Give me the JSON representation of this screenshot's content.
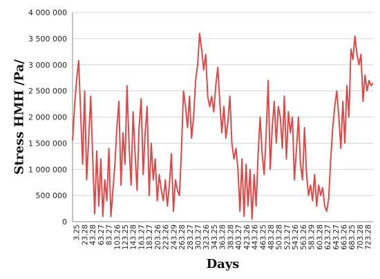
{
  "chart_data": {
    "type": "line",
    "title": "",
    "xlabel": "Days",
    "ylabel": "Stress HMH /Pa/",
    "ylim": [
      0,
      4000000
    ],
    "yticks": [
      0,
      500000,
      1000000,
      1500000,
      2000000,
      2500000,
      3000000,
      3500000,
      4000000
    ],
    "ytick_labels": [
      "0",
      "500 000",
      "1 000 000",
      "1 500 000",
      "2 000 000",
      "2 500 000",
      "3 000 000",
      "3 500 000",
      "4 000 000"
    ],
    "xtick_labels": [
      "3.25",
      "23.28",
      "43.28",
      "63.27",
      "83.27",
      "103.26",
      "123.25",
      "143.28",
      "163.27",
      "183.27",
      "203.26",
      "223.26",
      "243.29",
      "263.28",
      "283.27",
      "303.27",
      "323.26",
      "343.25",
      "363.28",
      "383.28",
      "403.27",
      "423.26",
      "443.26",
      "463.25",
      "483.28",
      "503.28",
      "523.27",
      "543.26",
      "563.26",
      "583.29",
      "603.28",
      "623.27",
      "643.27",
      "663.26",
      "683.25",
      "703.28",
      "723.28"
    ],
    "grid": true,
    "line_color": "#e04848",
    "series": [
      {
        "name": "",
        "values": [
          1550000,
          2200000,
          2700000,
          3080000,
          2100000,
          1100000,
          2500000,
          800000,
          1600000,
          2400000,
          1200000,
          150000,
          1350000,
          300000,
          1200000,
          100000,
          800000,
          400000,
          1400000,
          100000,
          600000,
          1100000,
          1800000,
          2300000,
          700000,
          1700000,
          1100000,
          2600000,
          1500000,
          700000,
          2100000,
          1300000,
          600000,
          1800000,
          2350000,
          900000,
          1700000,
          2200000,
          500000,
          1500000,
          800000,
          1200000,
          400000,
          900000,
          600000,
          400000,
          800000,
          300000,
          700000,
          1300000,
          200000,
          800000,
          600000,
          500000,
          1400000,
          2500000,
          2200000,
          1800000,
          2400000,
          1600000,
          2000000,
          2700000,
          3000000,
          3600000,
          3300000,
          2900000,
          3200000,
          2400000,
          2200000,
          2400000,
          2100000,
          2600000,
          2950000,
          2300000,
          1700000,
          2200000,
          1600000,
          1900000,
          2400000,
          1500000,
          1200000,
          1400000,
          1000000,
          200000,
          1200000,
          100000,
          1100000,
          300000,
          1000000,
          50000,
          900000,
          300000,
          1300000,
          2000000,
          1300000,
          900000,
          1700000,
          2700000,
          1000000,
          1800000,
          2300000,
          1500000,
          2200000,
          2000000,
          1400000,
          2400000,
          1200000,
          2100000,
          1700000,
          2000000,
          800000,
          1400000,
          2000000,
          1100000,
          800000,
          1800000,
          900000,
          500000,
          700000,
          400000,
          900000,
          300000,
          700000,
          500000,
          650000,
          300000,
          200000,
          450000,
          1200000,
          1800000,
          2200000,
          2500000,
          2000000,
          1400000,
          2300000,
          1500000,
          2600000,
          2000000,
          3300000,
          3100000,
          3550000,
          3200000,
          3000000,
          3200000,
          2300000,
          2800000,
          2500000,
          2700000,
          2600000,
          2650000
        ]
      }
    ]
  }
}
